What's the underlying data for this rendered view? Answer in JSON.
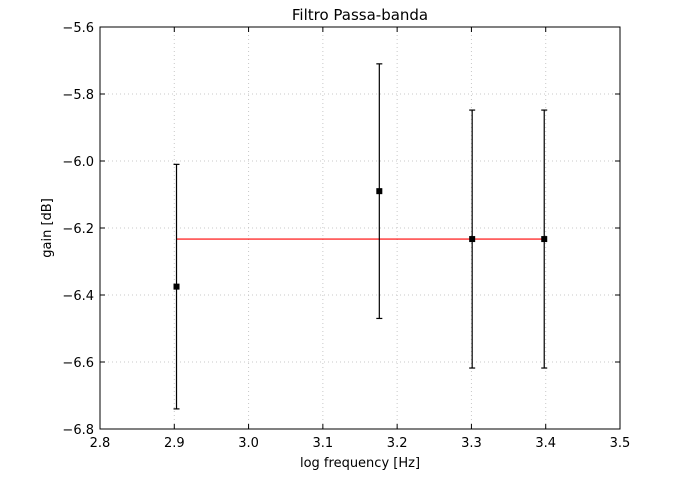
{
  "chart_data": {
    "type": "scatter",
    "title": "Filtro Passa-banda",
    "xlabel": "log frequency [Hz]",
    "ylabel": "gain [dB]",
    "xlim": [
      2.8,
      3.5
    ],
    "ylim": [
      -6.8,
      -5.6
    ],
    "x_ticks": [
      2.8,
      2.9,
      3.0,
      3.1,
      3.2,
      3.3,
      3.4,
      3.5
    ],
    "x_tick_labels": [
      "2.8",
      "2.9",
      "3.0",
      "3.1",
      "3.2",
      "3.3",
      "3.4",
      "3.5"
    ],
    "y_ticks": [
      -6.8,
      -6.6,
      -6.4,
      -6.2,
      -6.0,
      -5.8,
      -5.6
    ],
    "y_tick_labels": [
      "−6.8",
      "−6.6",
      "−6.4",
      "−6.2",
      "−6.0",
      "−5.8",
      "−5.6"
    ],
    "grid": true,
    "series": [
      {
        "kind": "errorbar",
        "color": "#000000",
        "x": [
          2.903,
          3.176,
          3.301,
          3.398
        ],
        "y": [
          -6.375,
          -6.09,
          -6.233,
          -6.233
        ],
        "yerr": [
          0.365,
          0.38,
          0.385,
          0.385
        ]
      },
      {
        "kind": "line",
        "color": "#ff0000",
        "x": [
          2.903,
          3.398
        ],
        "y": [
          -6.233,
          -6.233
        ]
      }
    ]
  }
}
